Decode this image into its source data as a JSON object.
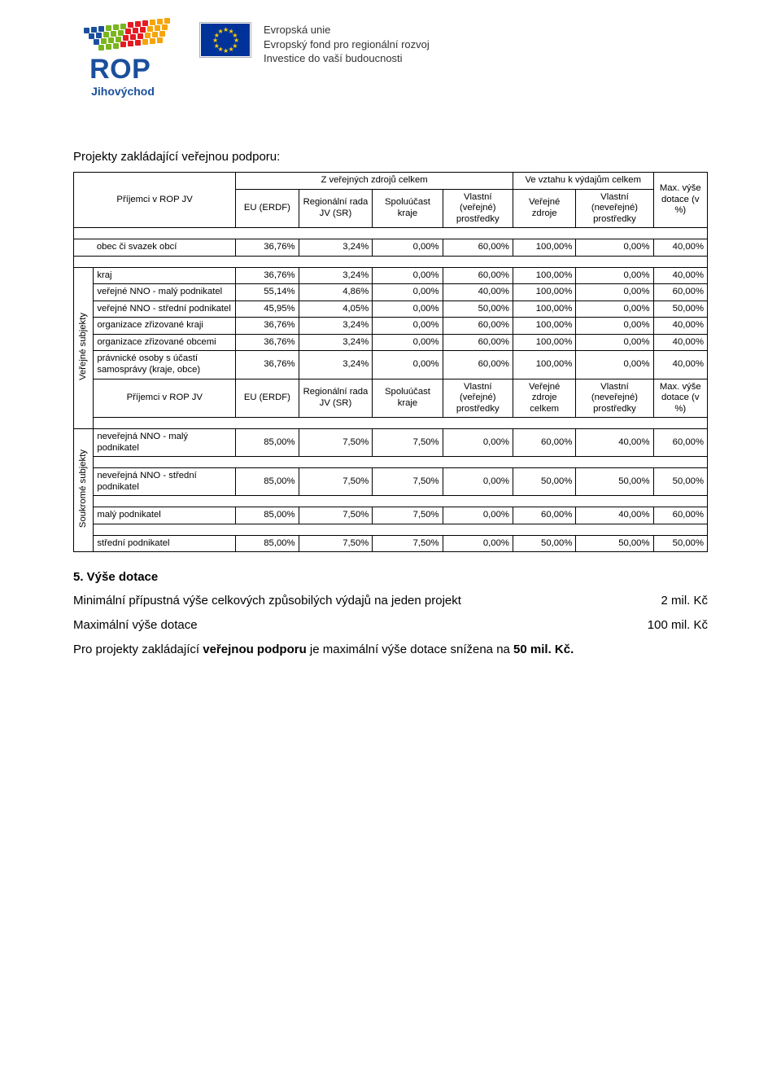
{
  "header": {
    "rop_top": "ROP",
    "rop_bottom": "Jihovýchod",
    "eu_line1": "Evropská unie",
    "eu_line2": "Evropský fond pro regionální rozvoj",
    "eu_line3": "Investice do vaší budoucnosti",
    "dot_colors": [
      "#1a4f9c",
      "#7ab51d",
      "#e31b23",
      "#f5a50a"
    ]
  },
  "title": "Projekty zakládající veřejnou podporu:",
  "table_header_1": {
    "prijemci": "Příjemci v ROP JV",
    "zverejnych": "Z veřejných zdrojů celkem",
    "vevztahu": "Ve vztahu k výdajům celkem",
    "max": "Max. výše dotace (v %)",
    "eu": "EU (ERDF)",
    "reg": "Regionální rada JV (SR)",
    "spolu": "Spoluúčast kraje",
    "vlast_ver": "Vlastní (veřejné) prostředky",
    "ver_zdr": "Veřejné zdroje",
    "vlast_never": "Vlastní (neveřejné) prostředky"
  },
  "sections": {
    "verejne_label": "Veřejné subjekty",
    "soukrome_label": "Soukromé subjekty"
  },
  "rows_a": [
    {
      "label": "obec či svazek obcí",
      "v": [
        "36,76%",
        "3,24%",
        "0,00%",
        "60,00%",
        "100,00%",
        "0,00%",
        "40,00%"
      ]
    },
    {
      "label": "kraj",
      "v": [
        "36,76%",
        "3,24%",
        "0,00%",
        "60,00%",
        "100,00%",
        "0,00%",
        "40,00%"
      ]
    },
    {
      "label": "veřejné NNO - malý podnikatel",
      "v": [
        "55,14%",
        "4,86%",
        "0,00%",
        "40,00%",
        "100,00%",
        "0,00%",
        "60,00%"
      ]
    },
    {
      "label": "veřejné NNO - střední podnikatel",
      "v": [
        "45,95%",
        "4,05%",
        "0,00%",
        "50,00%",
        "100,00%",
        "0,00%",
        "50,00%"
      ]
    },
    {
      "label": "organizace zřizované kraji",
      "v": [
        "36,76%",
        "3,24%",
        "0,00%",
        "60,00%",
        "100,00%",
        "0,00%",
        "40,00%"
      ]
    },
    {
      "label": "organizace zřizované obcemi",
      "v": [
        "36,76%",
        "3,24%",
        "0,00%",
        "60,00%",
        "100,00%",
        "0,00%",
        "40,00%"
      ]
    },
    {
      "label": "právnické osoby s účastí samosprávy (kraje, obce)",
      "v": [
        "36,76%",
        "3,24%",
        "0,00%",
        "60,00%",
        "100,00%",
        "0,00%",
        "40,00%"
      ]
    }
  ],
  "table_header_2": {
    "prijemci": "Příjemci v ROP JV",
    "eu": "EU (ERDF)",
    "reg": "Regionální rada JV (SR)",
    "spolu": "Spoluúčast kraje",
    "vlast_ver": "Vlastní (veřejné) prostředky",
    "ver_zdr": "Veřejné zdroje celkem",
    "vlast_never": "Vlastní (neveřejné) prostředky",
    "max": "Max. výše dotace (v %)"
  },
  "rows_b": [
    {
      "label": "neveřejná NNO - malý podnikatel",
      "v": [
        "85,00%",
        "7,50%",
        "7,50%",
        "0,00%",
        "60,00%",
        "40,00%",
        "60,00%"
      ]
    },
    {
      "label": "neveřejná NNO - střední podnikatel",
      "v": [
        "85,00%",
        "7,50%",
        "7,50%",
        "0,00%",
        "50,00%",
        "50,00%",
        "50,00%"
      ]
    },
    {
      "label": "malý podnikatel",
      "v": [
        "85,00%",
        "7,50%",
        "7,50%",
        "0,00%",
        "60,00%",
        "40,00%",
        "60,00%"
      ]
    },
    {
      "label": "střední podnikatel",
      "v": [
        "85,00%",
        "7,50%",
        "7,50%",
        "0,00%",
        "50,00%",
        "50,00%",
        "50,00%"
      ]
    }
  ],
  "section5": {
    "title": "5. Výše dotace",
    "line1_left": "Minimální přípustná výše celkových způsobilých výdajů na jeden projekt",
    "line1_right": "2 mil. Kč",
    "line2_left": "Maximální výše dotace",
    "line2_right": "100 mil. Kč",
    "line3_a": "Pro projekty zakládající ",
    "line3_b": "veřejnou podporu",
    "line3_c": " je maximální výše dotace snížena na ",
    "line3_d": "50 mil. Kč."
  }
}
